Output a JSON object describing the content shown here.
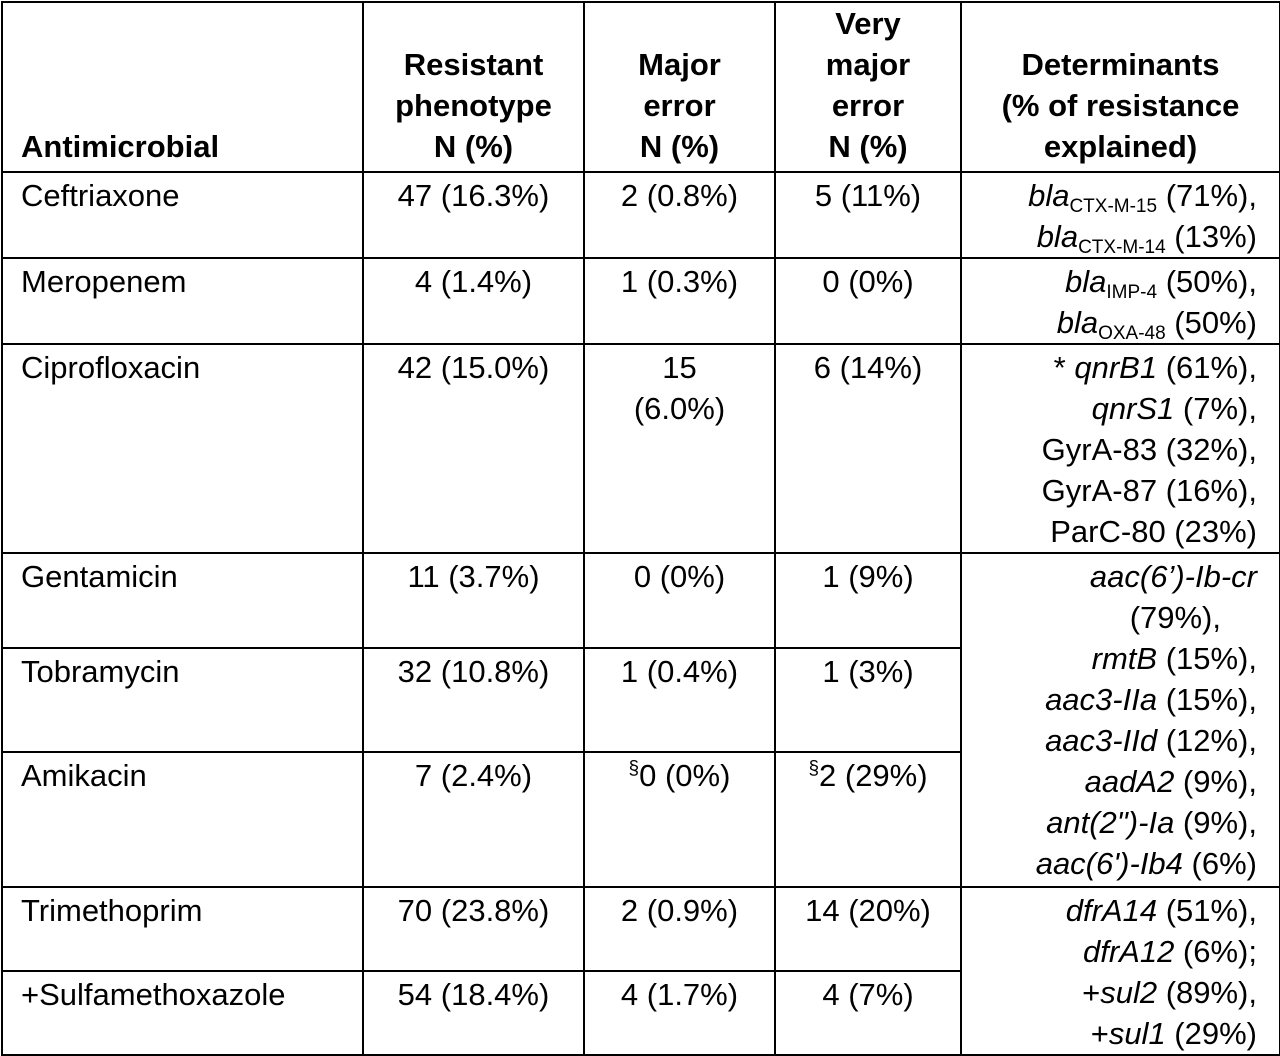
{
  "headers": {
    "antimicrobial": "Antimicrobial",
    "resistant": [
      "Resistant",
      "phenotype",
      "N (%)"
    ],
    "major": [
      "Major",
      "error",
      "N (%)"
    ],
    "very_major": [
      "Very",
      "major",
      "error",
      "N (%)"
    ],
    "determinants": [
      "Determinants",
      "(% of resistance",
      "explained)"
    ]
  },
  "rows": [
    {
      "name": "Ceftriaxone",
      "resistant": "47 (16.3%)",
      "major": "2 (0.8%)",
      "very_major": "5 (11%)"
    },
    {
      "name": "Meropenem",
      "resistant": "4 (1.4%)",
      "major": "1 (0.3%)",
      "very_major": "0 (0%)"
    },
    {
      "name": "Ciprofloxacin",
      "resistant": "42 (15.0%)",
      "major": [
        "15",
        "(6.0%)"
      ],
      "very_major": "6 (14%)"
    },
    {
      "name": "Gentamicin",
      "resistant": "11 (3.7%)",
      "major": "0 (0%)",
      "very_major": "1 (9%)"
    },
    {
      "name": "Tobramycin",
      "resistant": "32 (10.8%)",
      "major": "1 (0.4%)",
      "very_major": "1 (3%)"
    },
    {
      "name": "Amikacin",
      "resistant": "7 (2.4%)",
      "major_mark": "§",
      "major": "0 (0%)",
      "very_major_mark": "§",
      "very_major": "2 (29%)"
    },
    {
      "name": "Trimethoprim",
      "resistant": "70 (23.8%)",
      "major": "2 (0.9%)",
      "very_major": "14 (20%)"
    },
    {
      "name": "+Sulfamethoxazole",
      "resistant": "54 (18.4%)",
      "major": "4 (1.7%)",
      "very_major": "4 (7%)"
    }
  ],
  "determinants": {
    "ceftriaxone": [
      {
        "gene": "bla",
        "sub": "CTX-M-15",
        "pct": " (71%),"
      },
      {
        "gene": "bla",
        "sub": "CTX-M-14",
        "pct": " (13%)"
      }
    ],
    "meropenem": [
      {
        "gene": "bla",
        "sub": "IMP-4",
        "pct": " (50%),"
      },
      {
        "gene": "bla",
        "sub": "OXA-48",
        "pct": " (50%)"
      }
    ],
    "ciprofloxacin": [
      {
        "prefix": "* ",
        "gene": "qnrB1",
        "pct": " (61%),"
      },
      {
        "gene": "qnrS1",
        "pct": " (7%),"
      },
      {
        "text": "GyrA-83 (32%),"
      },
      {
        "text": "GyrA-87 (16%),"
      },
      {
        "text": "ParC-80 (23%)"
      }
    ],
    "aminoglycosides": [
      {
        "gene": "aac(6’)-Ib-cr"
      },
      {
        "text": "(79%),"
      },
      {
        "gene": "rmtB",
        "pct": " (15%),"
      },
      {
        "gene": "aac3-IIa",
        "pct": " (15%),"
      },
      {
        "gene": "aac3-IId",
        "pct": " (12%),"
      },
      {
        "gene": "aadA2",
        "pct": " (9%),"
      },
      {
        "gene": "ant(2\")-Ia",
        "pct": " (9%),"
      },
      {
        "gene": "aac(6')-Ib4",
        "pct": " (6%)"
      }
    ],
    "trimethoprim_sulfa": [
      {
        "gene": "dfrA14",
        "pct": " (51%),"
      },
      {
        "gene": "dfrA12",
        "pct": " (6%);"
      },
      {
        "prefix": "+",
        "gene": "sul2",
        "pct": " (89%),"
      },
      {
        "prefix": "+",
        "gene": "sul1",
        "pct": " (29%)"
      }
    ]
  }
}
